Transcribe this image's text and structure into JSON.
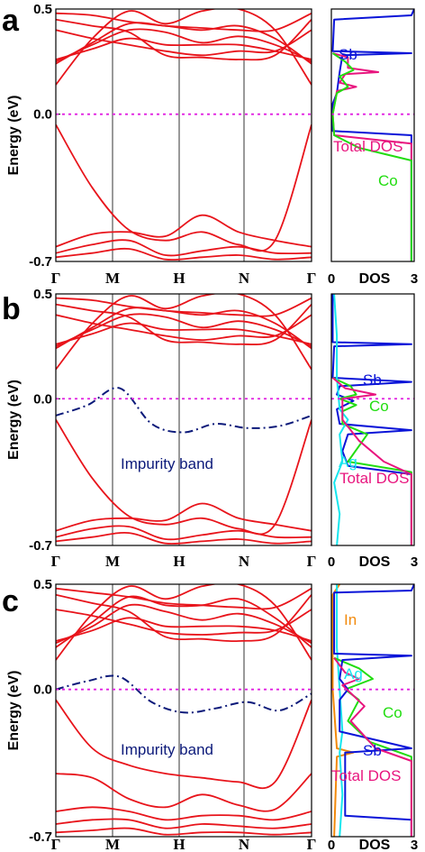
{
  "chart_data": [
    {
      "type": "line",
      "panel_label": "a",
      "ylabel": "Energy (eV)",
      "ylim": [
        -0.7,
        0.5
      ],
      "yticks": [
        "0.5",
        "0.0",
        "-0.7"
      ],
      "kpoints": [
        "Γ",
        "M",
        "H",
        "N",
        "Γ"
      ],
      "fermi_level": 0.0,
      "band_color": "#e8141b",
      "fermi_color": "#e020e0",
      "bands": [
        [
          0.14,
          0.36,
          0.49,
          0.43,
          0.49,
          0.5,
          0.4,
          0.14
        ],
        [
          0.24,
          0.34,
          0.43,
          0.42,
          0.4,
          0.42,
          0.36,
          0.24
        ],
        [
          0.25,
          0.33,
          0.4,
          0.39,
          0.34,
          0.37,
          0.33,
          0.25
        ],
        [
          0.26,
          0.31,
          0.36,
          0.33,
          0.33,
          0.33,
          0.3,
          0.26
        ],
        [
          0.4,
          0.36,
          0.33,
          0.3,
          0.28,
          0.3,
          0.3,
          0.4
        ],
        [
          0.45,
          0.42,
          0.39,
          0.28,
          0.27,
          0.26,
          0.28,
          0.45
        ],
        [
          0.48,
          0.47,
          0.44,
          0.42,
          0.41,
          0.4,
          0.4,
          0.48
        ],
        [
          -0.05,
          -0.35,
          -0.55,
          -0.6,
          -0.56,
          -0.62,
          -0.6,
          -0.05
        ],
        [
          -0.63,
          -0.57,
          -0.56,
          -0.58,
          -0.48,
          -0.56,
          -0.6,
          -0.63
        ],
        [
          -0.66,
          -0.62,
          -0.6,
          -0.67,
          -0.65,
          -0.63,
          -0.66,
          -0.66
        ],
        [
          -0.68,
          -0.66,
          -0.64,
          -0.69,
          -0.68,
          -0.67,
          -0.69,
          -0.68
        ]
      ],
      "dos": {
        "xlabel": "DOS",
        "xticks": [
          "0",
          "3"
        ],
        "xlim": [
          0,
          3
        ],
        "series": [
          {
            "name": "Sb",
            "color": "#0a14d8"
          },
          {
            "name": "Total DOS",
            "color": "#e8157e"
          },
          {
            "name": "Co",
            "color": "#22dd11"
          }
        ]
      }
    },
    {
      "type": "line",
      "panel_label": "b",
      "ylabel": "Energy (eV)",
      "ylim": [
        -0.7,
        0.5
      ],
      "yticks": [
        "0.5",
        "0.0",
        "-0.7"
      ],
      "kpoints": [
        "Γ",
        "M",
        "H",
        "N",
        "Γ"
      ],
      "fermi_level": 0.0,
      "band_color": "#e8141b",
      "fermi_color": "#e020e0",
      "annotation": "Impurity band",
      "impurity_band": [
        -0.08,
        -0.03,
        0.05,
        -0.12,
        -0.16,
        -0.12,
        -0.14,
        -0.13,
        -0.08
      ],
      "bands": [
        [
          0.14,
          0.36,
          0.49,
          0.43,
          0.49,
          0.5,
          0.4,
          0.14
        ],
        [
          0.24,
          0.34,
          0.43,
          0.42,
          0.4,
          0.42,
          0.36,
          0.24
        ],
        [
          0.25,
          0.33,
          0.4,
          0.39,
          0.34,
          0.37,
          0.33,
          0.25
        ],
        [
          0.26,
          0.31,
          0.36,
          0.33,
          0.33,
          0.33,
          0.3,
          0.26
        ],
        [
          0.4,
          0.36,
          0.33,
          0.3,
          0.28,
          0.3,
          0.3,
          0.4
        ],
        [
          0.45,
          0.42,
          0.39,
          0.28,
          0.27,
          0.26,
          0.28,
          0.45
        ],
        [
          0.48,
          0.47,
          0.44,
          0.42,
          0.41,
          0.4,
          0.4,
          0.48
        ],
        [
          -0.1,
          -0.38,
          -0.56,
          -0.6,
          -0.57,
          -0.62,
          -0.6,
          -0.1
        ],
        [
          -0.63,
          -0.58,
          -0.57,
          -0.58,
          -0.5,
          -0.57,
          -0.6,
          -0.63
        ],
        [
          -0.66,
          -0.62,
          -0.61,
          -0.67,
          -0.65,
          -0.63,
          -0.66,
          -0.66
        ],
        [
          -0.68,
          -0.66,
          -0.64,
          -0.69,
          -0.68,
          -0.67,
          -0.69,
          -0.68
        ]
      ],
      "dos": {
        "xlabel": "DOS",
        "xticks": [
          "0",
          "3"
        ],
        "xlim": [
          0,
          3
        ],
        "series": [
          {
            "name": "Sb",
            "color": "#0a14d8"
          },
          {
            "name": "Co",
            "color": "#22dd11"
          },
          {
            "name": "Ag",
            "color": "#16e6ee"
          },
          {
            "name": "Total DOS",
            "color": "#e8157e"
          }
        ]
      }
    },
    {
      "type": "line",
      "panel_label": "c",
      "ylabel": "Energy (eV)",
      "ylim": [
        -0.7,
        0.5
      ],
      "yticks": [
        "0.5",
        "0.0",
        "-0.7"
      ],
      "kpoints": [
        "Γ",
        "M",
        "H",
        "N",
        "Γ"
      ],
      "fermi_level": 0.0,
      "band_color": "#e8141b",
      "fermi_color": "#e020e0",
      "annotation": "Impurity band",
      "impurity_band": [
        0.0,
        0.04,
        0.06,
        -0.06,
        -0.11,
        -0.09,
        -0.06,
        -0.1,
        -0.02
      ],
      "bands": [
        [
          0.14,
          0.36,
          0.49,
          0.43,
          0.49,
          0.5,
          0.4,
          0.14
        ],
        [
          0.2,
          0.32,
          0.44,
          0.4,
          0.4,
          0.43,
          0.34,
          0.2
        ],
        [
          0.22,
          0.3,
          0.4,
          0.37,
          0.33,
          0.36,
          0.31,
          0.22
        ],
        [
          0.23,
          0.28,
          0.34,
          0.3,
          0.3,
          0.3,
          0.28,
          0.23
        ],
        [
          0.38,
          0.35,
          0.31,
          0.27,
          0.26,
          0.27,
          0.28,
          0.38
        ],
        [
          0.45,
          0.41,
          0.37,
          0.25,
          0.24,
          0.23,
          0.26,
          0.45
        ],
        [
          0.48,
          0.46,
          0.44,
          0.41,
          0.4,
          0.39,
          0.39,
          0.48
        ],
        [
          -0.05,
          -0.28,
          -0.36,
          -0.4,
          -0.42,
          -0.44,
          -0.44,
          -0.05
        ],
        [
          -0.4,
          -0.42,
          -0.52,
          -0.56,
          -0.5,
          -0.55,
          -0.57,
          -0.4
        ],
        [
          -0.58,
          -0.56,
          -0.58,
          -0.62,
          -0.6,
          -0.6,
          -0.62,
          -0.58
        ],
        [
          -0.64,
          -0.62,
          -0.62,
          -0.66,
          -0.64,
          -0.65,
          -0.66,
          -0.64
        ],
        [
          -0.68,
          -0.67,
          -0.66,
          -0.69,
          -0.68,
          -0.68,
          -0.69,
          -0.68
        ]
      ],
      "dos": {
        "xlabel": "DOS",
        "xticks": [
          "0",
          "3"
        ],
        "xlim": [
          0,
          3
        ],
        "series": [
          {
            "name": "In",
            "color": "#f28a0c"
          },
          {
            "name": "Ag",
            "color": "#16e6ee"
          },
          {
            "name": "Co",
            "color": "#22dd11"
          },
          {
            "name": "Sb",
            "color": "#0a14d8"
          },
          {
            "name": "Total DOS",
            "color": "#e8157e"
          }
        ]
      }
    }
  ]
}
